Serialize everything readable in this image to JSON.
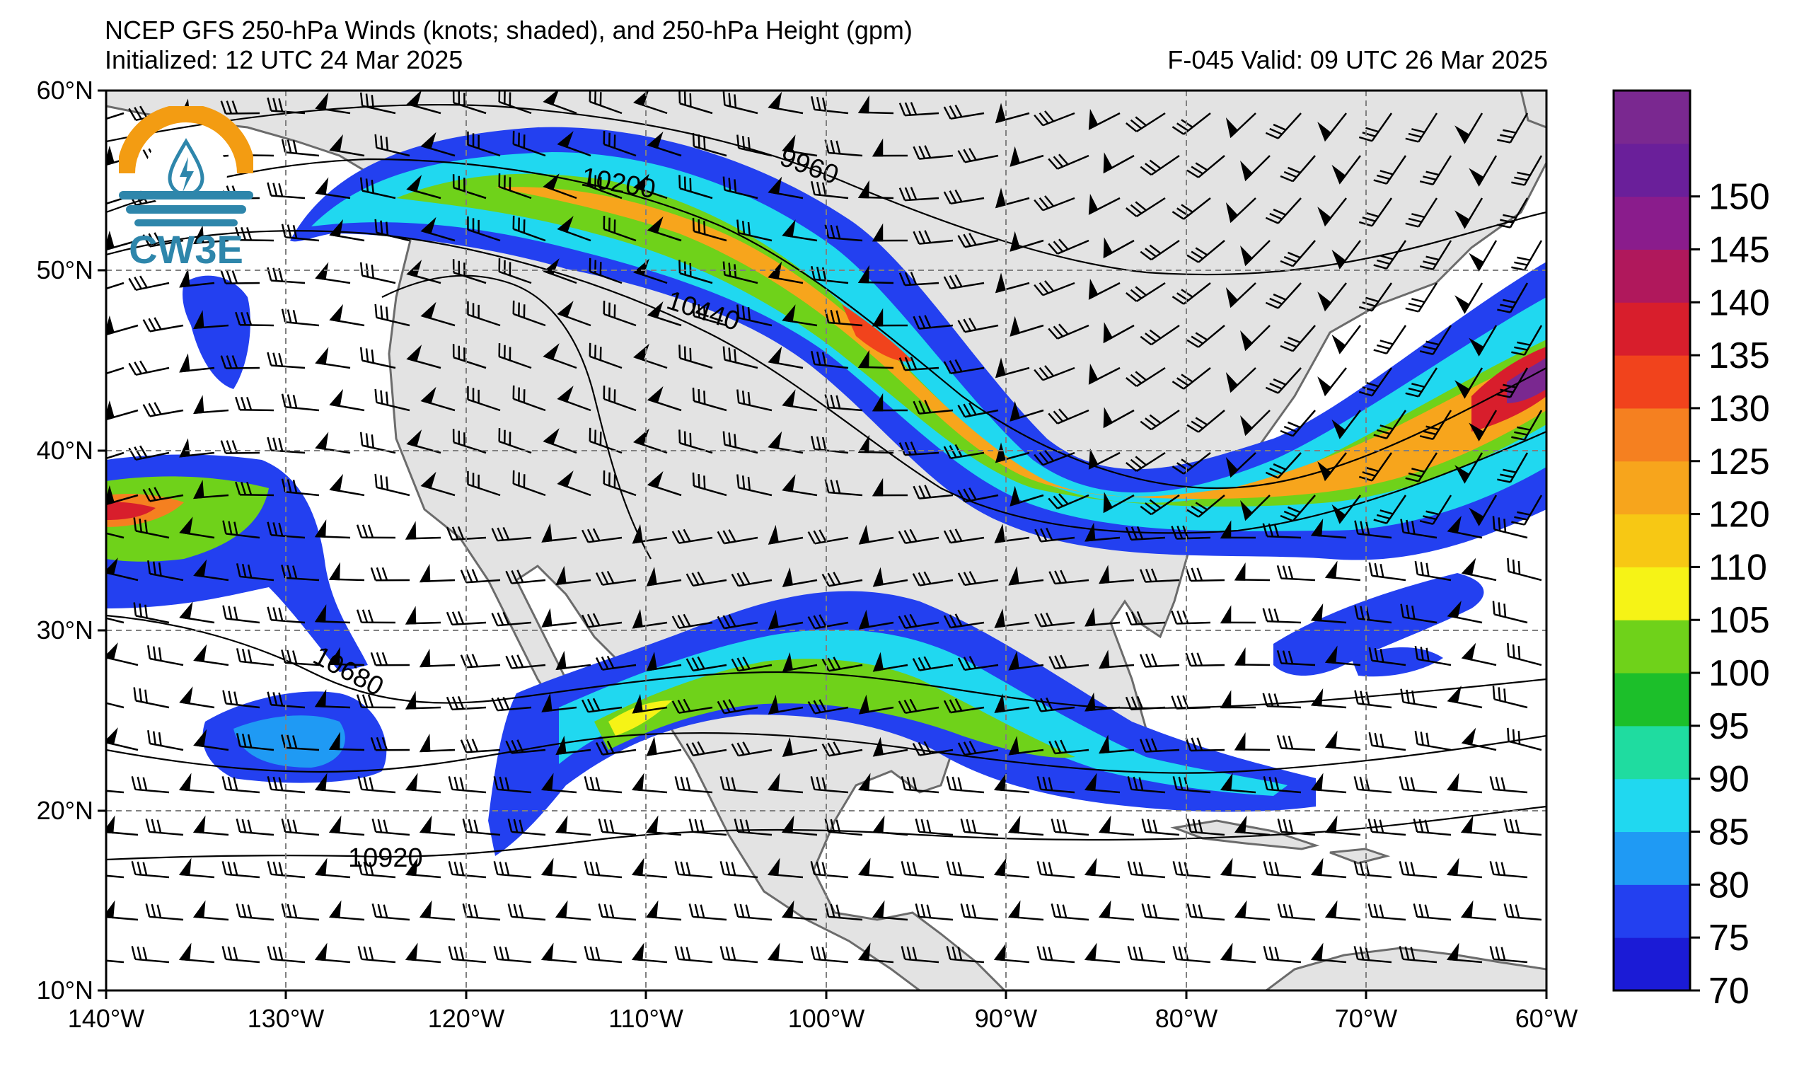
{
  "header": {
    "title": "NCEP GFS 250-hPa Winds (knots; shaded), and 250-hPa Height (gpm)",
    "initialized": "Initialized: 12 UTC 24 Mar 2025",
    "valid": "F-045  Valid: 09 UTC 26 Mar 2025"
  },
  "logo": {
    "text": "CW3E",
    "icon": "water-drop-lightning-icon",
    "colors": {
      "sun": "#f39c12",
      "waves": "#2e86ab"
    }
  },
  "axes": {
    "lat_labels": [
      "60°N",
      "50°N",
      "40°N",
      "30°N",
      "20°N",
      "10°N"
    ],
    "lon_labels": [
      "140°W",
      "130°W",
      "120°W",
      "110°W",
      "100°W",
      "90°W",
      "80°W",
      "70°W",
      "60°W"
    ],
    "lon_range": [
      -140,
      -60
    ],
    "lat_range": [
      10,
      60
    ]
  },
  "colorbar": {
    "levels": [
      "70",
      "75",
      "80",
      "85",
      "90",
      "95",
      "100",
      "105",
      "110",
      "120",
      "125",
      "130",
      "135",
      "140",
      "145",
      "150"
    ],
    "colors": [
      "#1b1bd6",
      "#2340f0",
      "#1f9af4",
      "#20d8f0",
      "#1fdca0",
      "#1cbf2a",
      "#6fd21a",
      "#f6f316",
      "#f7c814",
      "#f7a51c",
      "#f58020",
      "#f1431c",
      "#d81e2c",
      "#b0185c",
      "#8a1c8c",
      "#6a1f9a",
      "#7a2890"
    ]
  },
  "contours": {
    "labels": [
      "9960",
      "10200",
      "10440",
      "10680",
      "10920"
    ]
  },
  "style": {
    "land": "#e3e3e3",
    "ocean": "#ffffff",
    "coast": "#6b6b6b",
    "grid": "#808080"
  }
}
